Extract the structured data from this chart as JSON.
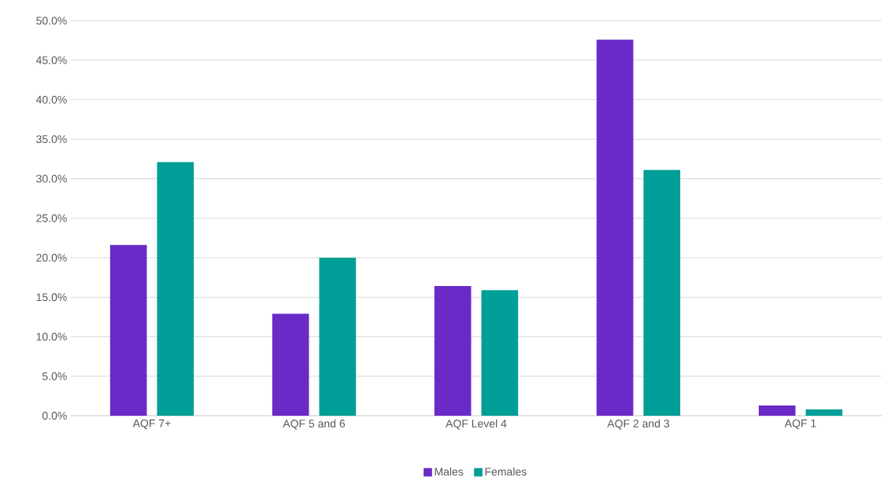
{
  "chart_data": {
    "type": "bar",
    "categories": [
      "AQF 7+",
      "AQF 5 and 6",
      "AQF Level 4",
      "AQF 2 and 3",
      "AQF 1"
    ],
    "series": [
      {
        "name": "Males",
        "color": "#6a2ac8",
        "values": [
          21.6,
          12.9,
          16.4,
          47.6,
          1.3
        ]
      },
      {
        "name": "Females",
        "color": "#009e96",
        "values": [
          32.1,
          20.0,
          15.9,
          31.1,
          0.8
        ]
      }
    ],
    "ylim": [
      0,
      50
    ],
    "yticks": [
      {
        "value": 0,
        "label": "0.0%"
      },
      {
        "value": 5,
        "label": "5.0%"
      },
      {
        "value": 10,
        "label": "10.0%"
      },
      {
        "value": 15,
        "label": "15.0%"
      },
      {
        "value": 20,
        "label": "20.0%"
      },
      {
        "value": 25,
        "label": "25.0%"
      },
      {
        "value": 30,
        "label": "30.0%"
      },
      {
        "value": 35,
        "label": "35.0%"
      },
      {
        "value": 40,
        "label": "40.0%"
      },
      {
        "value": 45,
        "label": "45.0%"
      },
      {
        "value": 50,
        "label": "50.0%"
      }
    ],
    "grid": "y",
    "legend": "bottom"
  }
}
